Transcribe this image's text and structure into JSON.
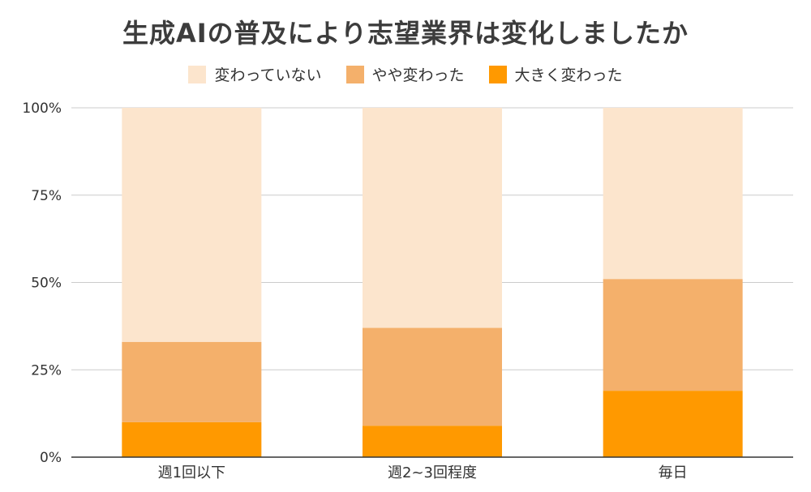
{
  "chart_data": {
    "type": "bar",
    "stacked": true,
    "normalized": true,
    "title": "生成AIの普及により志望業界は変化しましたか",
    "categories": [
      "週1回以下",
      "週2~3回程度",
      "毎日"
    ],
    "series": [
      {
        "name": "大きく変わった",
        "color": "#ff9900",
        "values": [
          10,
          9,
          19
        ]
      },
      {
        "name": "やや変わった",
        "color": "#f4b06b",
        "values": [
          23,
          28,
          32
        ]
      },
      {
        "name": "変わっていない",
        "color": "#fce5cd",
        "values": [
          67,
          63,
          49
        ]
      }
    ],
    "legend_order": [
      "変わっていない",
      "やや変わった",
      "大きく変わった"
    ],
    "ylim": [
      0,
      100
    ],
    "yticks": [
      "0%",
      "25%",
      "50%",
      "75%",
      "100%"
    ],
    "ytick_values": [
      0,
      25,
      50,
      75,
      100
    ],
    "legend_position": "top",
    "grid": true
  }
}
